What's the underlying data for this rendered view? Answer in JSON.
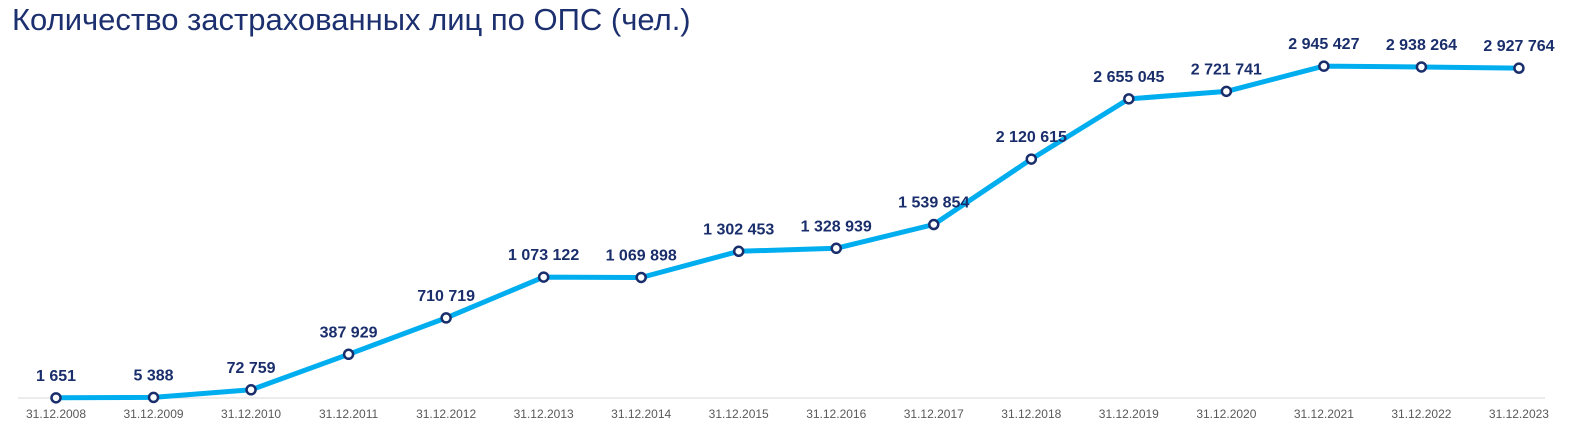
{
  "chart_data": {
    "type": "line",
    "title": "Количество застрахованных лиц по ОПС (чел.)",
    "categories": [
      "31.12.2008",
      "31.12.2009",
      "31.12.2010",
      "31.12.2011",
      "31.12.2012",
      "31.12.2013",
      "31.12.2014",
      "31.12.2015",
      "31.12.2016",
      "31.12.2017",
      "31.12.2018",
      "31.12.2019",
      "31.12.2020",
      "31.12.2021",
      "31.12.2022",
      "31.12.2023"
    ],
    "values": [
      1651,
      5388,
      72759,
      387929,
      710719,
      1073122,
      1069898,
      1302453,
      1328939,
      1539854,
      2120615,
      2655045,
      2721741,
      2945427,
      2938264,
      2927764
    ],
    "data_labels": [
      "1 651",
      "5 388",
      "72 759",
      "387 929",
      "710 719",
      "1 073 122",
      "1 069 898",
      "1 302 453",
      "1 328 939",
      "1 539 854",
      "2 120 615",
      "2 655 045",
      "2 721 741",
      "2 945 427",
      "2 938 264",
      "2 927 764"
    ],
    "ylim": [
      0,
      3000000
    ],
    "grid": false,
    "legend": "none",
    "colors": {
      "line": "#00aeef",
      "marker_stroke": "#1a2e6c",
      "marker_fill": "#ffffff",
      "labels": "#1a2e6c",
      "axis": "#d9d9d9"
    }
  }
}
